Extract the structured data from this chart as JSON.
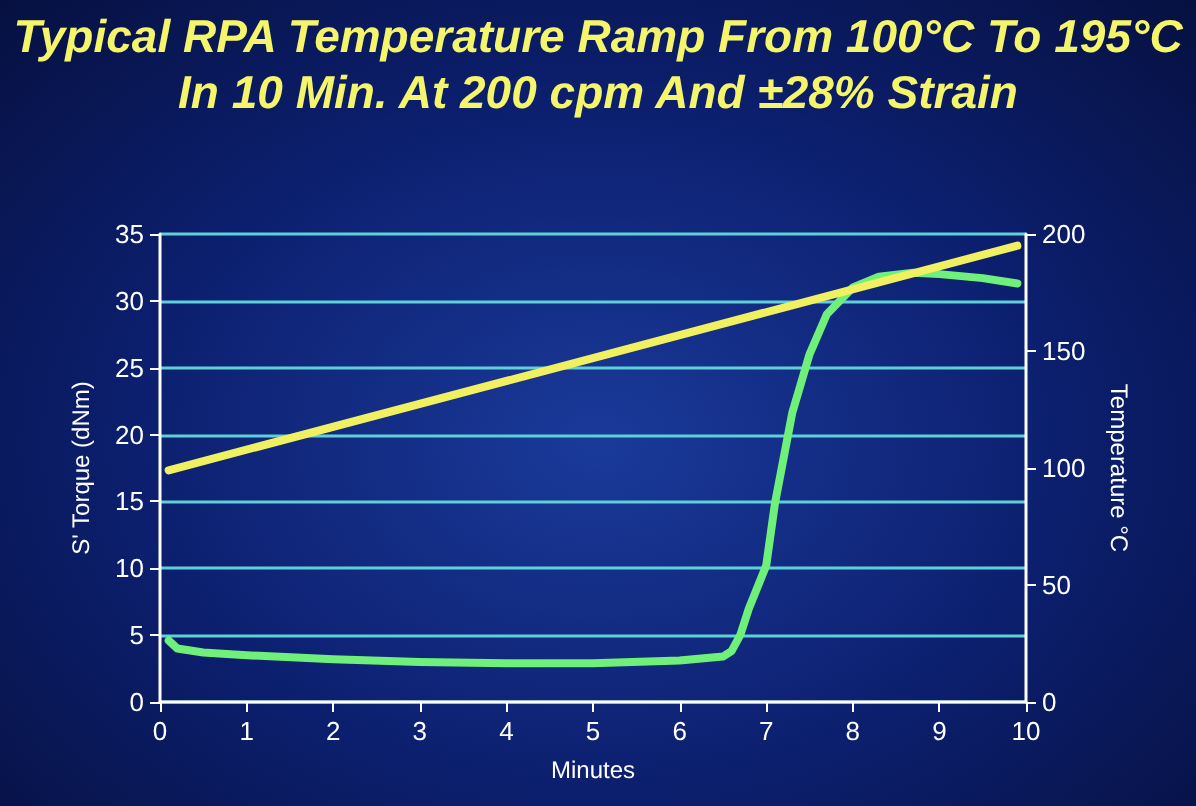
{
  "chart_data": {
    "type": "line",
    "title": "Typical RPA Temperature Ramp From 100°C To 195°C In 10 Min. At 200 cpm And ±28% Strain",
    "xlabel": "Minutes",
    "ylabel": "S' Torque (dNm)",
    "y2label": "Temperature °C",
    "xlim": [
      0,
      10
    ],
    "xticks": [
      0,
      1,
      2,
      3,
      4,
      5,
      6,
      7,
      8,
      9,
      10
    ],
    "ylim": [
      0,
      35
    ],
    "yticks": [
      0,
      5,
      10,
      15,
      20,
      25,
      30,
      35
    ],
    "y2lim": [
      0,
      200
    ],
    "y2ticks": [
      0,
      50,
      100,
      150,
      200
    ],
    "grid": "y",
    "marker": "none",
    "line_style": "solid",
    "series": [
      {
        "color": "#6ef07a",
        "x": [
          0.1,
          0.2,
          0.5,
          1,
          2,
          3,
          4,
          5,
          6,
          6.5,
          6.6,
          6.7,
          6.8,
          7,
          7.1,
          7.3,
          7.5,
          7.7,
          8,
          8.3,
          8.7,
          9,
          9.5,
          9.9
        ],
        "values": [
          4.6,
          4.0,
          3.7,
          3.5,
          3.2,
          3.0,
          2.9,
          2.9,
          3.1,
          3.4,
          3.8,
          5,
          7,
          10.2,
          14.8,
          21.6,
          26,
          29,
          31,
          31.8,
          32.1,
          32,
          31.7,
          31.3
        ]
      },
      {
        "color": "#f0f060",
        "axis": "y2",
        "x": [
          0.1,
          9.9
        ],
        "values": [
          99,
          195
        ]
      }
    ]
  }
}
